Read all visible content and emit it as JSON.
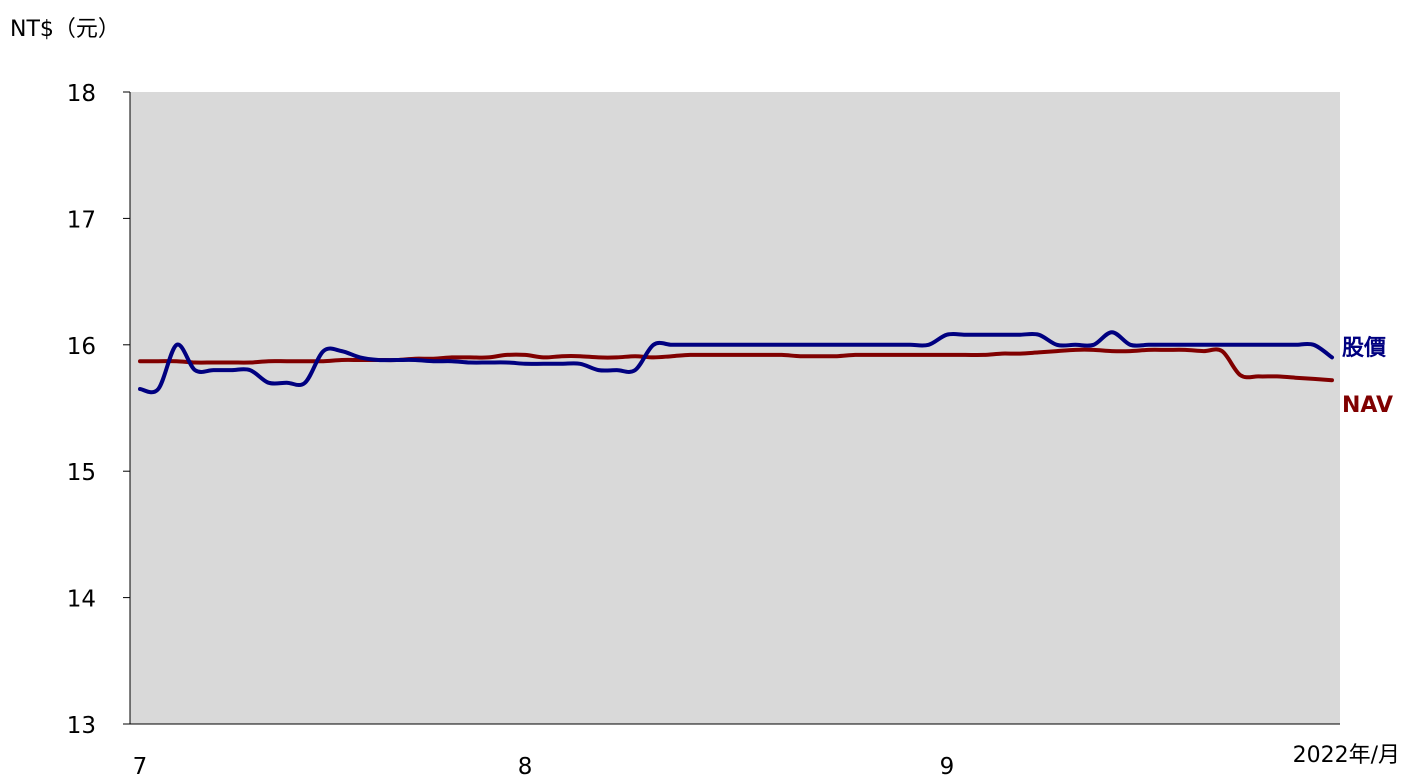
{
  "chart_data": {
    "type": "line",
    "y_unit_label": "NT$（元）",
    "x_unit_label": "2022年/月",
    "xlabel": "",
    "ylabel": "",
    "ylim": [
      13,
      18
    ],
    "y_ticks": [
      "13",
      "14",
      "15",
      "16",
      "17",
      "18"
    ],
    "x_tick_labels": [
      "7",
      "8",
      "9"
    ],
    "x": [
      "7/1",
      "7/4",
      "7/5",
      "7/6",
      "7/7",
      "7/8",
      "7/11",
      "7/12",
      "7/13",
      "7/14",
      "7/15",
      "7/18",
      "7/19",
      "7/20",
      "7/21",
      "7/22",
      "7/25",
      "7/26",
      "7/27",
      "7/28",
      "7/29",
      "8/1",
      "8/2",
      "8/3",
      "8/4",
      "8/5",
      "8/8",
      "8/9",
      "8/10",
      "8/11",
      "8/12",
      "8/15",
      "8/16",
      "8/17",
      "8/18",
      "8/19",
      "8/22",
      "8/23",
      "8/24",
      "8/25",
      "8/26",
      "8/29",
      "8/30",
      "8/31",
      "9/1",
      "9/2",
      "9/5",
      "9/6",
      "9/7",
      "9/8",
      "9/9",
      "9/12",
      "9/13",
      "9/14",
      "9/15",
      "9/16",
      "9/19",
      "9/20",
      "9/21",
      "9/22",
      "9/23",
      "9/26",
      "9/27",
      "9/28",
      "9/29",
      "9/30"
    ],
    "series": [
      {
        "name": "股價",
        "color": "#000080",
        "values": [
          15.65,
          15.65,
          16.0,
          15.8,
          15.8,
          15.8,
          15.8,
          15.7,
          15.7,
          15.7,
          15.95,
          15.95,
          15.9,
          15.88,
          15.88,
          15.88,
          15.87,
          15.87,
          15.86,
          15.86,
          15.86,
          15.85,
          15.85,
          15.85,
          15.85,
          15.8,
          15.8,
          15.8,
          16.0,
          16.0,
          16.0,
          16.0,
          16.0,
          16.0,
          16.0,
          16.0,
          16.0,
          16.0,
          16.0,
          16.0,
          16.0,
          16.0,
          16.0,
          16.0,
          16.08,
          16.08,
          16.08,
          16.08,
          16.08,
          16.08,
          16.0,
          16.0,
          16.0,
          16.1,
          16.0,
          16.0,
          16.0,
          16.0,
          16.0,
          16.0,
          16.0,
          16.0,
          16.0,
          16.0,
          16.0,
          15.9
        ]
      },
      {
        "name": "NAV",
        "color": "#800000",
        "values": [
          15.87,
          15.87,
          15.87,
          15.86,
          15.86,
          15.86,
          15.86,
          15.87,
          15.87,
          15.87,
          15.87,
          15.88,
          15.88,
          15.88,
          15.88,
          15.89,
          15.89,
          15.9,
          15.9,
          15.9,
          15.92,
          15.92,
          15.9,
          15.91,
          15.91,
          15.9,
          15.9,
          15.91,
          15.9,
          15.91,
          15.92,
          15.92,
          15.92,
          15.92,
          15.92,
          15.92,
          15.91,
          15.91,
          15.91,
          15.92,
          15.92,
          15.92,
          15.92,
          15.92,
          15.92,
          15.92,
          15.92,
          15.93,
          15.93,
          15.94,
          15.95,
          15.96,
          15.96,
          15.95,
          15.95,
          15.96,
          15.96,
          15.96,
          15.95,
          15.95,
          15.76,
          15.75,
          15.75,
          15.74,
          15.73,
          15.72
        ]
      }
    ],
    "plot_background": "#d9d9d9",
    "grid": false,
    "legend": "end-of-line labels"
  }
}
